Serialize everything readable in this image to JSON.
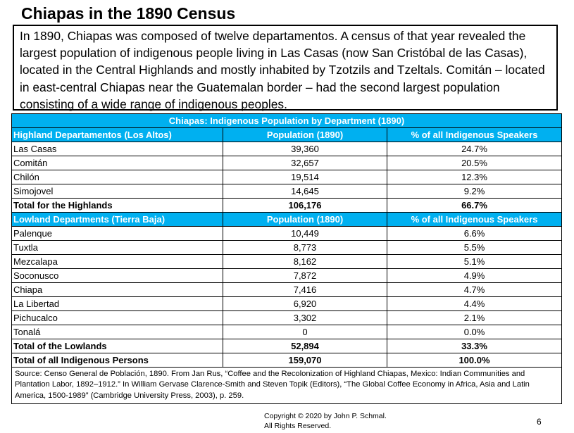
{
  "title": "Chiapas in the 1890 Census",
  "intro": "In 1890, Chiapas was composed of twelve departamentos. A census of that year revealed the largest population of indigenous people living in Las Casas (now San Cristóbal de las Casas), located in the Central Highlands and mostly inhabited by Tzotzils and Tzeltals. Comitán – located in east-central Chiapas near the Guatemalan border – had the second largest population consisting of a wide range of indigenous peoples.",
  "table": {
    "caption": "Chiapas: Indigenous Population by Department (1890)",
    "highland": {
      "header": [
        "Highland Departamentos (Los Altos)",
        "Population (1890)",
        "% of all Indigenous Speakers"
      ],
      "rows": [
        [
          "Las Casas",
          "39,360",
          "24.7%"
        ],
        [
          "Comitán",
          "32,657",
          "20.5%"
        ],
        [
          "Chilón",
          "19,514",
          "12.3%"
        ],
        [
          "Simojovel",
          "14,645",
          "9.2%"
        ]
      ],
      "total": [
        "Total for the Highlands",
        "106,176",
        "66.7%"
      ]
    },
    "lowland": {
      "header": [
        "Lowland Departments (Tierra Baja)",
        "Population (1890)",
        "% of all Indigenous Speakers"
      ],
      "rows": [
        [
          "Palenque",
          "10,449",
          "6.6%"
        ],
        [
          "Tuxtla",
          "8,773",
          "5.5%"
        ],
        [
          "Mezcalapa",
          "8,162",
          "5.1%"
        ],
        [
          "Soconusco",
          "7,872",
          "4.9%"
        ],
        [
          "Chiapa",
          "7,416",
          "4.7%"
        ],
        [
          "La Libertad",
          "6,920",
          "4.4%"
        ],
        [
          "Pichucalco",
          "3,302",
          "2.1%"
        ],
        [
          "Tonalá",
          "0",
          "0.0%"
        ]
      ],
      "total": [
        "Total of the Lowlands",
        "52,894",
        "33.3%"
      ]
    },
    "grand_total": [
      "Total of all Indigenous Persons",
      "159,070",
      "100.0%"
    ],
    "source": "Source: Censo General de Población, 1890. From Jan Rus, “Coffee and the Recolonization of Highland Chiapas, Mexico: Indian Communities and Plantation Labor, 1892–1912.” In William Gervase Clarence-Smith and Steven Topik (Editors), “The Global Coffee Economy in Africa, Asia and Latin America, 1500-1989” (Cambridge University Press, 2003), p. 259."
  },
  "footer": {
    "copyright_line1": "Copyright © 2020 by John P. Schmal.",
    "copyright_line2": "All Rights Reserved.",
    "page_number": "6"
  }
}
